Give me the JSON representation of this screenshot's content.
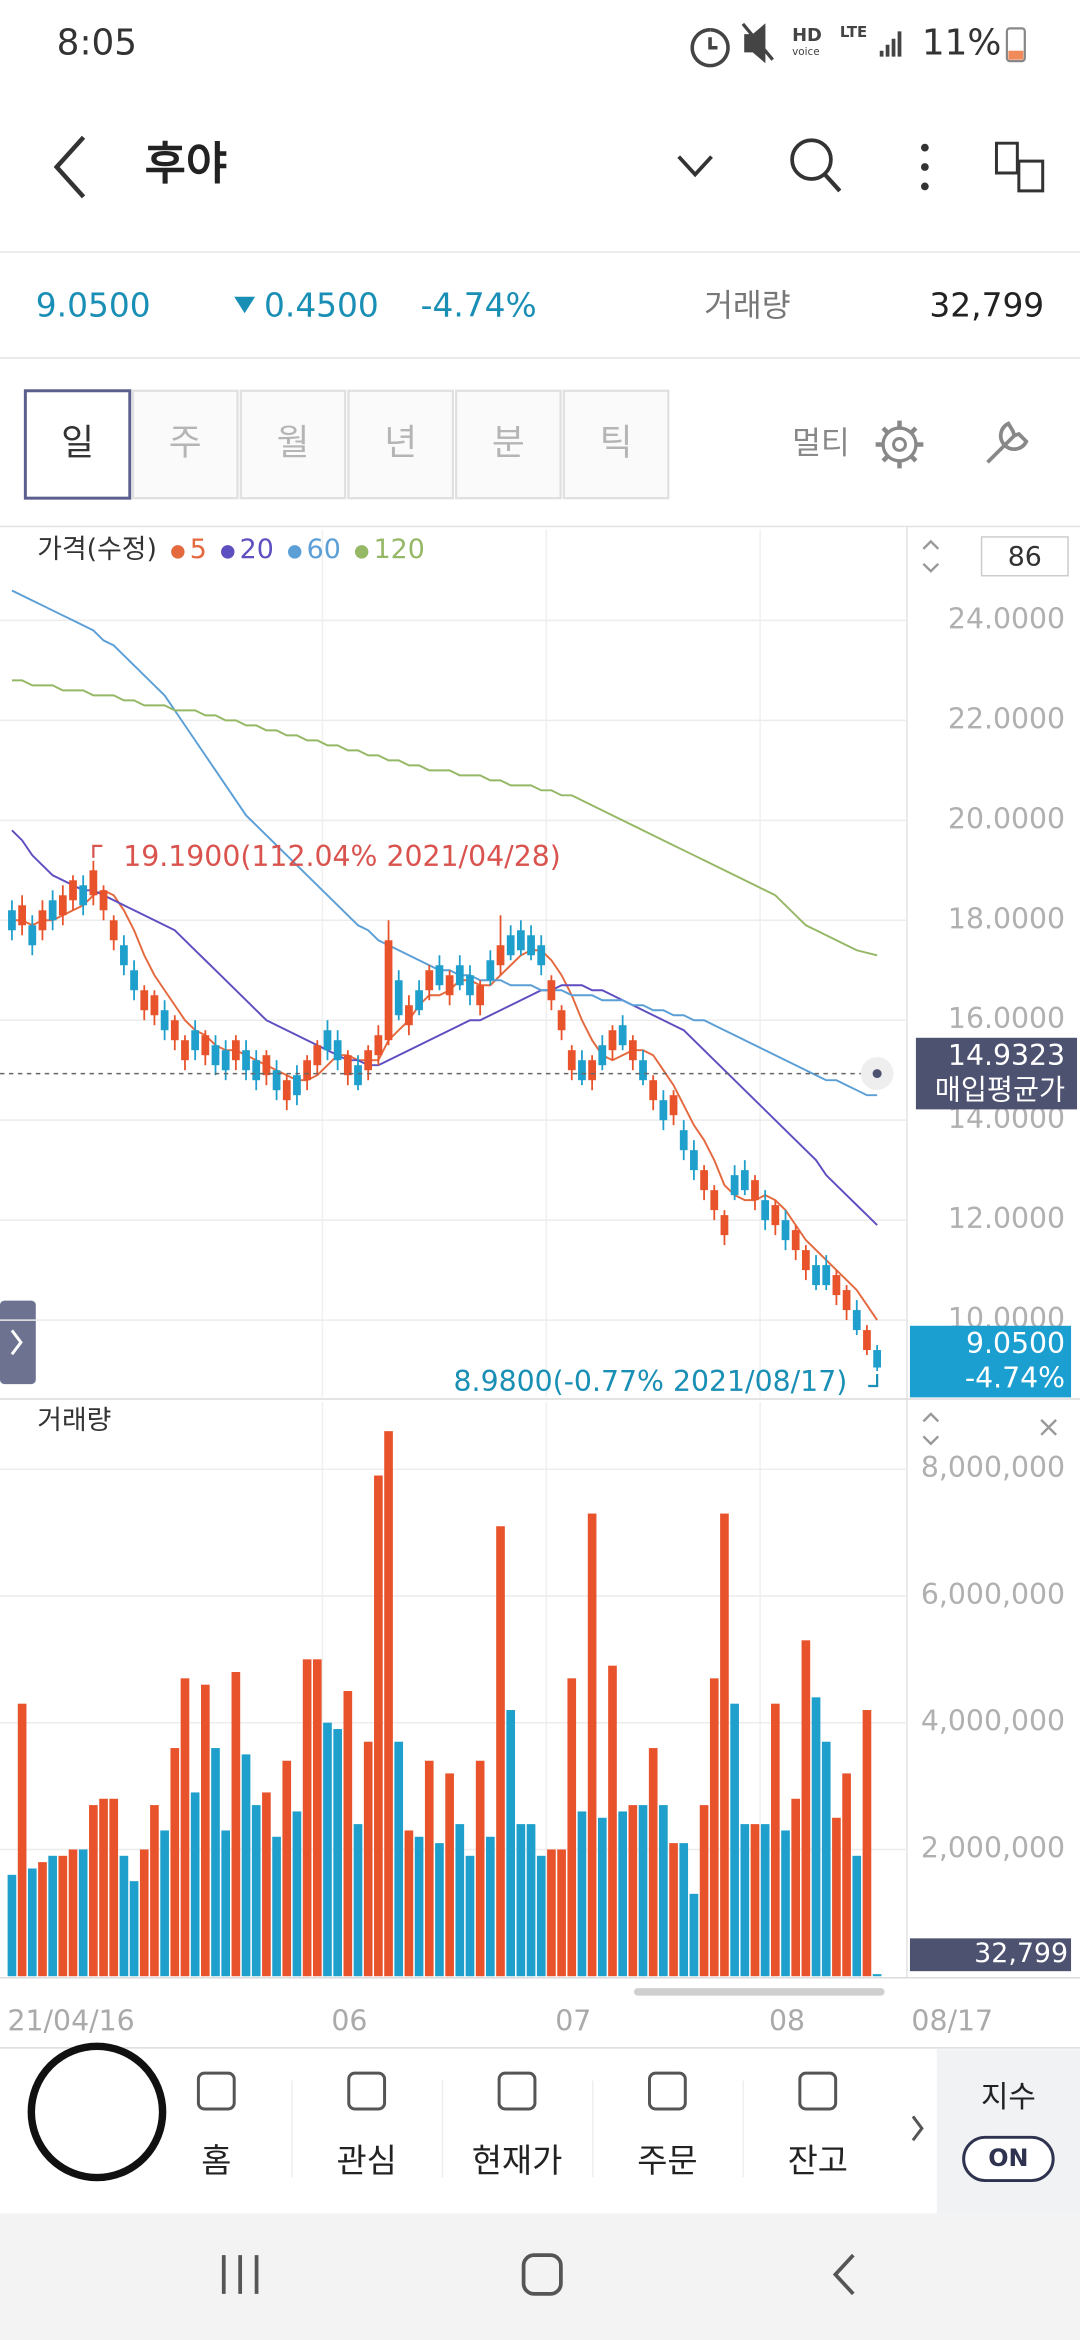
{
  "status_bar": {
    "time": "8:05",
    "voice": "HD",
    "voice_sub": "voice",
    "network": "LTE",
    "battery": "11%"
  },
  "header": {
    "title": "후야"
  },
  "quote": {
    "price": "9.0500",
    "change": "0.4500",
    "change_rate": "-4.74%",
    "volume_label": "거래량",
    "volume": "32,799"
  },
  "tabs": {
    "items": [
      "일",
      "주",
      "월",
      "년",
      "분",
      "틱"
    ],
    "selected": 0,
    "multi": "멀티"
  },
  "chart_data": [
    {
      "type": "candlestick",
      "title": "가격(수정)",
      "open": [
        18.2,
        17.9,
        17.9,
        17.8,
        18.4,
        18.1,
        18.4,
        18.7,
        18.5,
        18.2,
        17.6,
        17.5,
        17.0,
        16.2,
        16.1,
        16.2,
        15.6,
        15.2,
        15.8,
        15.3,
        15.5,
        15.4,
        15.2,
        15.4,
        15.2,
        14.9,
        15.0,
        14.4,
        14.9,
        14.8,
        15.1,
        15.8,
        15.6,
        14.9,
        15.1,
        15.0,
        15.3,
        15.6,
        16.8,
        15.9,
        16.6,
        16.6,
        17.1,
        16.5,
        17.1,
        16.9,
        16.3,
        17.2,
        17.1,
        17.7,
        17.8,
        17.7,
        17.5,
        16.4,
        15.8,
        15.0,
        15.2,
        14.8,
        15.5,
        15.4,
        15.9,
        15.2,
        15.2,
        14.4,
        14.4,
        14.1,
        13.8,
        13.4,
        12.6,
        12.2,
        11.7,
        12.9,
        13.0,
        12.4,
        12.4,
        11.9,
        12.0,
        11.4,
        11.0,
        11.1,
        11.1,
        10.5,
        10.2,
        10.2,
        9.4,
        9.4
      ],
      "high": [
        18.4,
        18.5,
        18.1,
        18.4,
        18.6,
        18.7,
        18.9,
        18.9,
        19.19,
        18.7,
        18.1,
        17.7,
        17.2,
        16.7,
        16.6,
        16.4,
        16.1,
        15.7,
        16.0,
        15.8,
        15.7,
        15.6,
        15.7,
        15.6,
        15.4,
        15.4,
        15.2,
        14.9,
        15.1,
        15.3,
        15.6,
        16.0,
        15.8,
        15.4,
        15.3,
        15.5,
        15.9,
        18.0,
        17.0,
        16.5,
        16.8,
        17.1,
        17.3,
        17.0,
        17.3,
        17.1,
        16.8,
        17.4,
        18.1,
        17.9,
        18.0,
        17.9,
        17.7,
        16.9,
        16.3,
        15.5,
        15.4,
        15.3,
        15.7,
        15.9,
        16.1,
        15.7,
        15.4,
        14.9,
        14.6,
        14.6,
        14.0,
        13.6,
        13.1,
        12.7,
        12.2,
        13.1,
        13.2,
        12.9,
        12.6,
        12.4,
        12.2,
        11.9,
        11.5,
        11.3,
        11.3,
        11.0,
        10.7,
        10.4,
        9.9,
        9.5
      ],
      "low": [
        17.6,
        17.7,
        17.3,
        17.6,
        17.8,
        17.9,
        18.2,
        18.1,
        18.3,
        18.0,
        17.4,
        16.9,
        16.4,
        16.0,
        15.9,
        15.6,
        15.4,
        15.0,
        15.2,
        15.1,
        14.9,
        14.8,
        15.0,
        14.8,
        14.6,
        14.7,
        14.4,
        14.2,
        14.3,
        14.6,
        14.9,
        15.2,
        15.0,
        14.7,
        14.6,
        14.8,
        15.1,
        15.5,
        16.0,
        15.7,
        16.1,
        16.4,
        16.6,
        16.3,
        16.6,
        16.3,
        16.1,
        16.7,
        16.9,
        17.2,
        17.3,
        17.2,
        16.9,
        16.2,
        15.6,
        14.8,
        14.7,
        14.6,
        15.0,
        15.2,
        15.4,
        15.0,
        14.7,
        14.2,
        13.8,
        13.9,
        13.2,
        12.8,
        12.4,
        12.0,
        11.5,
        12.4,
        12.5,
        12.2,
        11.8,
        11.7,
        11.4,
        11.2,
        10.8,
        10.6,
        10.6,
        10.3,
        10.0,
        9.7,
        9.3,
        8.98
      ],
      "close": [
        17.8,
        18.3,
        17.5,
        18.2,
        18.0,
        18.5,
        18.8,
        18.3,
        19.0,
        18.6,
        18.0,
        17.1,
        16.6,
        16.6,
        16.5,
        15.8,
        16.0,
        15.6,
        15.4,
        15.7,
        15.1,
        15.0,
        15.6,
        15.0,
        14.8,
        15.3,
        14.6,
        14.8,
        14.5,
        15.2,
        15.5,
        15.4,
        15.2,
        15.3,
        14.7,
        15.4,
        15.7,
        17.6,
        16.1,
        16.3,
        16.2,
        17.0,
        16.7,
        16.9,
        16.7,
        16.5,
        16.7,
        16.8,
        17.5,
        17.3,
        17.4,
        17.3,
        17.1,
        16.8,
        16.2,
        15.4,
        14.8,
        15.2,
        15.1,
        15.8,
        15.5,
        15.6,
        14.8,
        14.8,
        14.0,
        14.5,
        13.4,
        13.0,
        13.0,
        12.6,
        12.1,
        12.5,
        12.6,
        12.8,
        12.0,
        12.3,
        11.6,
        11.8,
        11.4,
        10.7,
        10.7,
        10.9,
        10.6,
        9.8,
        9.8,
        9.05
      ],
      "up_color": "#e8532b",
      "down_color": "#1f9fcb",
      "series": [
        {
          "name": "5",
          "color": "#e4693f",
          "values": [
            18.0,
            18.0,
            17.9,
            18.0,
            18.0,
            18.1,
            18.2,
            18.3,
            18.5,
            18.6,
            18.5,
            18.2,
            17.8,
            17.3,
            16.9,
            16.6,
            16.3,
            16.0,
            15.8,
            15.7,
            15.5,
            15.4,
            15.4,
            15.3,
            15.2,
            15.1,
            15.0,
            14.9,
            14.8,
            14.8,
            14.9,
            15.1,
            15.3,
            15.3,
            15.2,
            15.2,
            15.2,
            15.6,
            15.8,
            16.0,
            16.3,
            16.5,
            16.5,
            16.6,
            16.8,
            16.8,
            16.7,
            16.7,
            16.9,
            17.1,
            17.3,
            17.4,
            17.4,
            17.2,
            16.9,
            16.5,
            16.0,
            15.6,
            15.3,
            15.2,
            15.3,
            15.4,
            15.4,
            15.3,
            15.0,
            14.7,
            14.3,
            13.9,
            13.6,
            13.2,
            12.7,
            12.5,
            12.4,
            12.4,
            12.5,
            12.4,
            12.2,
            11.9,
            11.6,
            11.4,
            11.2,
            11.0,
            10.8,
            10.6,
            10.3,
            10.0
          ]
        },
        {
          "name": "20",
          "color": "#5e4fc0",
          "values": [
            19.8,
            19.6,
            19.3,
            19.1,
            18.9,
            18.8,
            18.7,
            18.6,
            18.6,
            18.5,
            18.4,
            18.3,
            18.2,
            18.1,
            18.0,
            17.9,
            17.8,
            17.6,
            17.4,
            17.2,
            17.0,
            16.8,
            16.6,
            16.4,
            16.2,
            16.0,
            15.9,
            15.8,
            15.7,
            15.6,
            15.5,
            15.4,
            15.3,
            15.2,
            15.2,
            15.1,
            15.1,
            15.2,
            15.3,
            15.4,
            15.5,
            15.6,
            15.7,
            15.8,
            15.9,
            16.0,
            16.0,
            16.1,
            16.2,
            16.3,
            16.4,
            16.5,
            16.6,
            16.6,
            16.7,
            16.7,
            16.7,
            16.6,
            16.6,
            16.5,
            16.4,
            16.3,
            16.2,
            16.1,
            16.0,
            15.9,
            15.8,
            15.6,
            15.4,
            15.2,
            15.0,
            14.8,
            14.6,
            14.4,
            14.2,
            14.0,
            13.8,
            13.6,
            13.4,
            13.2,
            12.9,
            12.7,
            12.5,
            12.3,
            12.1,
            11.9
          ]
        },
        {
          "name": "60",
          "color": "#5b9fd6",
          "values": [
            24.6,
            24.5,
            24.4,
            24.3,
            24.2,
            24.1,
            24.0,
            23.9,
            23.8,
            23.6,
            23.5,
            23.3,
            23.1,
            22.9,
            22.7,
            22.5,
            22.2,
            21.9,
            21.6,
            21.3,
            21.0,
            20.7,
            20.4,
            20.1,
            19.9,
            19.7,
            19.5,
            19.3,
            19.1,
            18.9,
            18.7,
            18.5,
            18.3,
            18.1,
            17.9,
            17.8,
            17.6,
            17.5,
            17.4,
            17.3,
            17.2,
            17.1,
            17.0,
            17.0,
            16.9,
            16.9,
            16.8,
            16.8,
            16.8,
            16.7,
            16.7,
            16.7,
            16.6,
            16.6,
            16.6,
            16.5,
            16.5,
            16.5,
            16.4,
            16.4,
            16.4,
            16.3,
            16.3,
            16.2,
            16.2,
            16.1,
            16.1,
            16.0,
            16.0,
            15.9,
            15.8,
            15.7,
            15.6,
            15.5,
            15.4,
            15.3,
            15.2,
            15.1,
            15.0,
            14.9,
            14.8,
            14.8,
            14.7,
            14.6,
            14.5,
            14.5
          ]
        },
        {
          "name": "120",
          "color": "#95b866",
          "values": [
            22.8,
            22.8,
            22.7,
            22.7,
            22.7,
            22.6,
            22.6,
            22.6,
            22.5,
            22.5,
            22.5,
            22.4,
            22.4,
            22.3,
            22.3,
            22.3,
            22.2,
            22.2,
            22.2,
            22.1,
            22.1,
            22.0,
            22.0,
            21.9,
            21.9,
            21.8,
            21.8,
            21.7,
            21.7,
            21.6,
            21.6,
            21.5,
            21.5,
            21.4,
            21.4,
            21.3,
            21.3,
            21.2,
            21.2,
            21.1,
            21.1,
            21.0,
            21.0,
            21.0,
            20.9,
            20.9,
            20.9,
            20.8,
            20.8,
            20.7,
            20.7,
            20.7,
            20.6,
            20.6,
            20.5,
            20.5,
            20.4,
            20.3,
            20.2,
            20.1,
            20.0,
            19.9,
            19.8,
            19.7,
            19.6,
            19.5,
            19.4,
            19.3,
            19.2,
            19.1,
            19.0,
            18.9,
            18.8,
            18.7,
            18.6,
            18.5,
            18.3,
            18.1,
            17.9,
            17.8,
            17.7,
            17.6,
            17.5,
            17.4,
            17.35,
            17.3
          ]
        }
      ],
      "ylim": [
        8.45,
        25.82
      ],
      "yticks": [
        {
          "value": 10,
          "label": "10.0000"
        },
        {
          "value": 12,
          "label": "12.0000"
        },
        {
          "value": 14,
          "label": "14.0000"
        },
        {
          "value": 16,
          "label": "16.0000"
        },
        {
          "value": 18,
          "label": "18.0000"
        },
        {
          "value": 20,
          "label": "20.0000"
        },
        {
          "value": 22,
          "label": "22.0000"
        },
        {
          "value": 24,
          "label": "24.0000"
        }
      ],
      "grid": true,
      "annotations": [
        {
          "text": "19.1900(112.04% 2021/04/28)",
          "color": "#d9534f"
        },
        {
          "text": "8.9800(-0.77% 2021/08/17)",
          "color": "#1a8fb5"
        }
      ],
      "reference_line": {
        "value": 14.9323,
        "label": "매입평균가"
      },
      "last_price": {
        "value": 9.05,
        "label": "9.0500",
        "change": "-4.74%"
      },
      "visible_count": 86
    },
    {
      "type": "bar",
      "title": "거래량",
      "categories": [
        "21/04/16",
        null,
        null,
        null,
        null,
        null,
        null,
        null,
        null,
        null,
        null,
        null,
        null,
        null,
        null,
        null,
        null,
        null,
        null,
        null,
        null,
        null,
        null,
        null,
        null,
        null,
        null,
        null,
        null,
        null,
        null,
        "06",
        null,
        null,
        null,
        null,
        null,
        null,
        null,
        null,
        null,
        null,
        null,
        null,
        null,
        null,
        null,
        null,
        null,
        null,
        null,
        null,
        null,
        "07",
        null,
        null,
        null,
        null,
        null,
        null,
        null,
        null,
        null,
        null,
        null,
        null,
        null,
        null,
        null,
        null,
        null,
        null,
        null,
        null,
        "08",
        null,
        null,
        null,
        null,
        null,
        null,
        null,
        null,
        null,
        null,
        "08/17"
      ],
      "values": [
        1600000,
        4300000,
        1700000,
        1800000,
        1900000,
        1900000,
        2000000,
        2000000,
        2700000,
        2800000,
        2800000,
        1900000,
        1500000,
        2000000,
        2700000,
        2300000,
        3600000,
        4700000,
        2900000,
        4600000,
        3600000,
        2300000,
        4800000,
        3500000,
        2700000,
        2900000,
        2200000,
        3400000,
        2600000,
        5000000,
        5000000,
        4000000,
        3900000,
        4500000,
        2400000,
        3700000,
        7900000,
        8600000,
        3700000,
        2300000,
        2200000,
        3400000,
        2100000,
        3200000,
        2400000,
        1900000,
        3400000,
        2200000,
        7100000,
        4200000,
        2400000,
        2400000,
        1900000,
        2000000,
        2000000,
        4700000,
        2600000,
        7300000,
        2500000,
        4900000,
        2600000,
        2700000,
        2700000,
        3600000,
        2700000,
        2100000,
        2100000,
        1300000,
        2700000,
        4700000,
        7300000,
        4300000,
        2400000,
        2400000,
        2400000,
        4300000,
        2300000,
        2800000,
        5300000,
        4400000,
        3700000,
        2500000,
        3200000,
        1900000,
        4200000,
        32799
      ],
      "ylim": [
        0,
        9060000
      ],
      "yticks": [
        {
          "value": 2000000,
          "label": "2,000,000"
        },
        {
          "value": 4000000,
          "label": "4,000,000"
        },
        {
          "value": 6000000,
          "label": "6,000,000"
        },
        {
          "value": 8000000,
          "label": "8,000,000"
        }
      ],
      "grid": true,
      "last_value": {
        "value": 32799,
        "label": "32,799"
      }
    }
  ],
  "bottom_nav": {
    "items": [
      "홈",
      "관심",
      "현재가",
      "주문",
      "잔고"
    ],
    "index_label": "지수",
    "toggle": "ON"
  }
}
